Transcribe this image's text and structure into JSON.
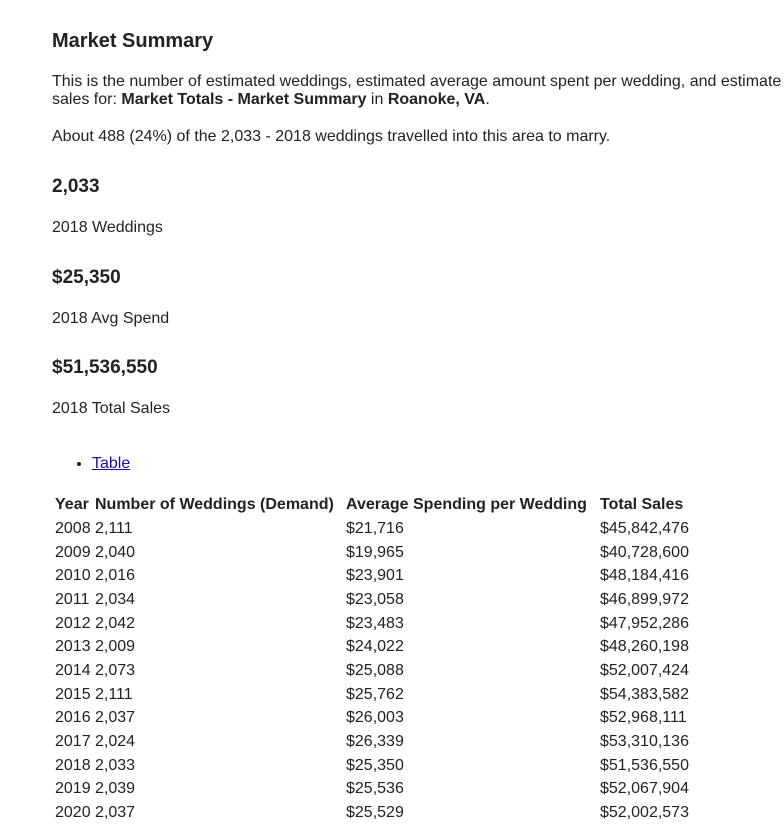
{
  "header": {
    "title": "Market Summary"
  },
  "intro": {
    "line1": "This is the number of estimated weddings, estimated average amount spent per wedding, and estimate",
    "line2_prefix": "sales for: ",
    "segment": "Market Totals - Market Summary",
    "connector": " in ",
    "location": "Roanoke, VA",
    "end": "."
  },
  "travel_note": "About 488 (24%) of the 2,033 - 2018 weddings travelled into this area to marry.",
  "stats": [
    {
      "value": "2,033",
      "label": "2018 Weddings"
    },
    {
      "value": "$25,350",
      "label": "2018 Avg Spend"
    },
    {
      "value": "$51,536,550",
      "label": "2018 Total Sales"
    }
  ],
  "tabs": [
    "Table"
  ],
  "table": {
    "headers": [
      "Year",
      "Number of Weddings (Demand)",
      "Average Spending per Wedding",
      "Total Sales"
    ],
    "rows": [
      [
        "2008",
        "2,111",
        "$21,716",
        "$45,842,476"
      ],
      [
        "2009",
        "2,040",
        "$19,965",
        "$40,728,600"
      ],
      [
        "2010",
        "2,016",
        "$23,901",
        "$48,184,416"
      ],
      [
        "2011",
        "2,034",
        "$23,058",
        "$46,899,972"
      ],
      [
        "2012",
        "2,042",
        "$23,483",
        "$47,952,286"
      ],
      [
        "2013",
        "2,009",
        "$24,022",
        "$48,260,198"
      ],
      [
        "2014",
        "2,073",
        "$25,088",
        "$52,007,424"
      ],
      [
        "2015",
        "2,111",
        "$25,762",
        "$54,383,582"
      ],
      [
        "2016",
        "2,037",
        "$26,003",
        "$52,968,111"
      ],
      [
        "2017",
        "2,024",
        "$26,339",
        "$53,310,136"
      ],
      [
        "2018",
        "2,033",
        "$25,350",
        "$51,536,550"
      ],
      [
        "2019",
        "2,039",
        "$25,536",
        "$52,067,904"
      ],
      [
        "2020",
        "2,037",
        "$25,529",
        "$52,002,573"
      ]
    ]
  }
}
